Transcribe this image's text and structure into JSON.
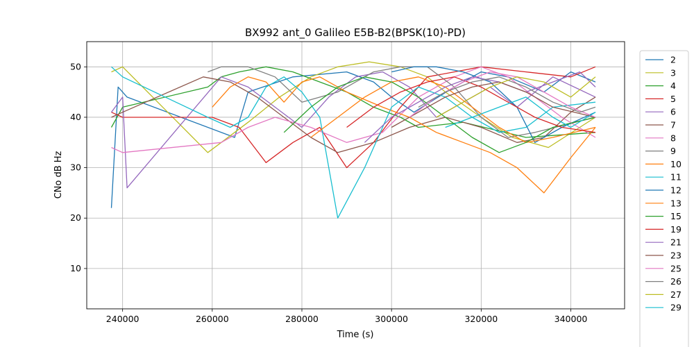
{
  "chart_data": {
    "type": "line",
    "title": "BX992 ant_0 Galileo E5B-B2(BPSK(10)-PD)",
    "xlabel": "Time (s)",
    "ylabel": "CNo dB Hz",
    "xlim": [
      232000,
      352000
    ],
    "ylim": [
      2,
      55
    ],
    "xticks": [
      240000,
      260000,
      280000,
      300000,
      320000,
      340000
    ],
    "xtick_labels": [
      "240000",
      "260000",
      "280000",
      "300000",
      "320000",
      "340000"
    ],
    "yticks": [
      10,
      20,
      30,
      40,
      50
    ],
    "ytick_labels": [
      "10",
      "20",
      "30",
      "40",
      "50"
    ],
    "grid": true,
    "legend_position": "right, outside plot",
    "series": [
      {
        "name": "2",
        "color": "#1f77b4",
        "x": [
          237500,
          239000,
          241000,
          265000,
          268000,
          278000,
          290000,
          296000,
          300000,
          305000,
          314000,
          320000,
          326000,
          334000,
          340000,
          345500
        ],
        "y": [
          22,
          46,
          44,
          36,
          45,
          48,
          49,
          47,
          44,
          41,
          46,
          49,
          48,
          45,
          49,
          47
        ]
      },
      {
        "name": "3",
        "color": "#bcbd22",
        "x": [
          237500,
          240000,
          259000,
          262000,
          268000,
          275000,
          282000,
          288000,
          295000,
          302000,
          308000,
          312000,
          320000,
          327000,
          335000,
          345500
        ],
        "y": [
          49,
          50,
          33,
          35,
          39,
          44,
          48,
          50,
          51,
          50,
          48,
          45,
          40,
          36,
          34,
          40
        ]
      },
      {
        "name": "4",
        "color": "#2ca02c",
        "x": [
          237500,
          240000,
          259000,
          262000,
          266000,
          272000,
          278000,
          284000,
          290000,
          296000,
          302000,
          306000,
          316000,
          330000,
          345500
        ],
        "y": [
          38,
          42,
          46,
          48,
          49,
          50,
          49,
          47,
          45,
          42,
          40,
          38,
          39,
          36,
          37
        ]
      },
      {
        "name": "5",
        "color": "#d62728",
        "x": [
          237500,
          240000,
          260000,
          266000,
          272000,
          278000,
          284000,
          290000,
          296000,
          302000,
          308000,
          314000,
          320000,
          330000,
          340000,
          345500
        ],
        "y": [
          41,
          40,
          40,
          38,
          31,
          35,
          38,
          30,
          35,
          42,
          48,
          49,
          50,
          49,
          48,
          50
        ]
      },
      {
        "name": "6",
        "color": "#9467bd",
        "x": [
          237500,
          240000,
          241000,
          262000,
          268000,
          274000,
          280000,
          286000,
          292000,
          298000,
          304000,
          310000,
          316000,
          322000,
          328000,
          336000,
          345500
        ],
        "y": [
          41,
          44,
          26,
          48,
          46,
          42,
          38,
          44,
          48,
          49,
          46,
          40,
          43,
          46,
          42,
          48,
          44
        ]
      },
      {
        "name": "7",
        "color": "#8c564b",
        "x": [
          237500,
          240000,
          258000,
          264000,
          270000,
          276000,
          282000,
          288000,
          296000,
          304000,
          312000,
          320000,
          328000,
          334000,
          340000,
          345500
        ],
        "y": [
          40,
          41,
          48,
          47,
          44,
          40,
          36,
          33,
          35,
          38,
          40,
          38,
          35,
          36,
          41,
          44
        ]
      },
      {
        "name": "8",
        "color": "#e377c2",
        "x": [
          237500,
          240000,
          262000,
          268000,
          274000,
          282000,
          290000,
          298000,
          306000,
          314000,
          320000,
          326000,
          332000,
          338000,
          345500
        ],
        "y": [
          34,
          33,
          35,
          38,
          40,
          38,
          35,
          37,
          44,
          48,
          50,
          48,
          44,
          40,
          36
        ]
      },
      {
        "name": "9",
        "color": "#7f7f7f",
        "x": [
          259000,
          262000,
          268000,
          274000,
          280000,
          288000,
          296000,
          302000,
          308000,
          314000,
          320000,
          326000,
          332000,
          345500
        ],
        "y": [
          49,
          50,
          50,
          48,
          43,
          45,
          49,
          50,
          50,
          46,
          40,
          36,
          37,
          40
        ]
      },
      {
        "name": "10",
        "color": "#ff7f0e",
        "x": [
          260000,
          264000,
          268000,
          272000,
          276000,
          280000,
          284000,
          290000,
          298000,
          304000,
          310000,
          316000,
          322000,
          328000,
          334000,
          340000,
          345500
        ],
        "y": [
          42,
          46,
          48,
          47,
          43,
          47,
          48,
          45,
          42,
          40,
          37,
          35,
          33,
          30,
          25,
          32,
          38
        ]
      },
      {
        "name": "11",
        "color": "#17becf",
        "x": [
          237500,
          240000,
          259000,
          264000,
          268000,
          272000,
          276000,
          280000,
          284000,
          288000,
          294000,
          300000,
          306000,
          312000,
          318000,
          324000,
          330000,
          336000,
          345500
        ],
        "y": [
          50,
          48,
          40,
          38,
          40,
          46,
          48,
          45,
          40,
          20,
          30,
          42,
          46,
          44,
          40,
          37,
          38,
          42,
          43
        ]
      },
      {
        "name": "12",
        "color": "#1f77b4",
        "x": [
          300000,
          305000,
          310000,
          316000,
          322000,
          328000,
          332000,
          338000,
          345500
        ],
        "y": [
          49,
          50,
          50,
          49,
          47,
          42,
          35,
          38,
          41
        ]
      },
      {
        "name": "13",
        "color": "#ff7f0e",
        "x": [
          282000,
          288000,
          294000,
          300000,
          306000,
          312000,
          318000,
          324000,
          330000,
          336000,
          345500
        ],
        "y": [
          36,
          40,
          44,
          47,
          48,
          46,
          42,
          38,
          35,
          36,
          38
        ]
      },
      {
        "name": "15",
        "color": "#2ca02c",
        "x": [
          276000,
          282000,
          288000,
          294000,
          300000,
          306000,
          312000,
          318000,
          324000,
          330000,
          336000,
          345500
        ],
        "y": [
          37,
          42,
          46,
          48,
          47,
          44,
          40,
          36,
          33,
          35,
          38,
          40
        ]
      },
      {
        "name": "19",
        "color": "#d62728",
        "x": [
          290000,
          296000,
          302000,
          308000,
          314000,
          320000,
          326000,
          332000,
          338000,
          345500
        ],
        "y": [
          38,
          42,
          45,
          47,
          48,
          46,
          43,
          40,
          38,
          37
        ]
      },
      {
        "name": "21",
        "color": "#9467bd",
        "x": [
          294000,
          300000,
          306000,
          312000,
          318000,
          324000,
          330000,
          336000,
          342000,
          345500
        ],
        "y": [
          35,
          40,
          43,
          46,
          48,
          47,
          45,
          47,
          49,
          46
        ]
      },
      {
        "name": "23",
        "color": "#8c564b",
        "x": [
          300000,
          306000,
          312000,
          318000,
          324000,
          330000,
          336000,
          345500
        ],
        "y": [
          38,
          41,
          44,
          46,
          47,
          45,
          42,
          40
        ]
      },
      {
        "name": "25",
        "color": "#e377c2",
        "x": [
          304000,
          310000,
          316000,
          322000,
          328000,
          334000,
          340000,
          345500
        ],
        "y": [
          40,
          44,
          47,
          49,
          48,
          45,
          42,
          40
        ]
      },
      {
        "name": "26",
        "color": "#7f7f7f",
        "x": [
          306000,
          312000,
          318000,
          324000,
          330000,
          336000,
          342000,
          345500
        ],
        "y": [
          42,
          45,
          47,
          48,
          46,
          43,
          41,
          42
        ]
      },
      {
        "name": "27",
        "color": "#bcbd22",
        "x": [
          310000,
          316000,
          322000,
          328000,
          334000,
          340000,
          345500
        ],
        "y": [
          40,
          43,
          46,
          48,
          47,
          44,
          48
        ]
      },
      {
        "name": "29",
        "color": "#17becf",
        "x": [
          312000,
          318000,
          324000,
          330000,
          336000,
          340000,
          345500
        ],
        "y": [
          38,
          40,
          42,
          44,
          40,
          38,
          41
        ]
      }
    ]
  }
}
